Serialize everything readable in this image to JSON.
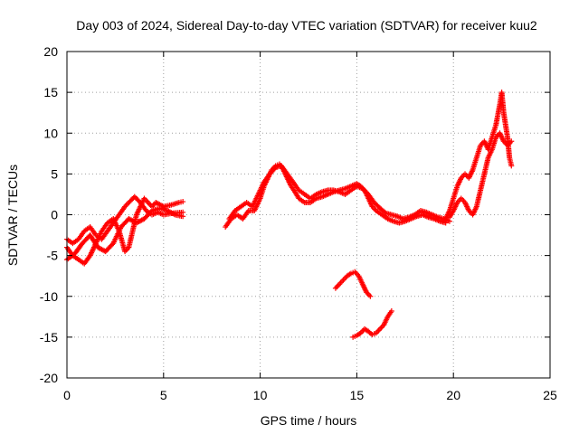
{
  "chart_data": {
    "type": "scatter",
    "title": "Day 003 of 2024, Sidereal Day-to-day VTEC variation (SDTVAR) for receiver kuu2",
    "xlabel": "GPS time / hours",
    "ylabel": "SDTVAR / TECUs",
    "xlim": [
      0,
      25
    ],
    "ylim": [
      -20,
      20
    ],
    "xticks": [
      0,
      5,
      10,
      15,
      20,
      25
    ],
    "yticks": [
      -20,
      -15,
      -10,
      -5,
      0,
      5,
      10,
      15,
      20
    ],
    "grid": true,
    "marker": "+",
    "color": "#ff0000",
    "series": [
      {
        "name": "track-a-early-morning",
        "points": [
          [
            0.0,
            -4.0
          ],
          [
            0.3,
            -5.0
          ],
          [
            0.6,
            -5.5
          ],
          [
            0.9,
            -6.0
          ],
          [
            1.2,
            -5.0
          ],
          [
            1.5,
            -3.5
          ],
          [
            1.8,
            -2.0
          ],
          [
            2.1,
            -1.0
          ],
          [
            2.4,
            -0.5
          ],
          [
            2.7,
            -2.0
          ],
          [
            3.0,
            -4.5
          ],
          [
            3.2,
            -4.0
          ],
          [
            3.4,
            -2.0
          ],
          [
            3.6,
            0.0
          ],
          [
            3.8,
            1.0
          ],
          [
            4.0,
            2.0
          ],
          [
            4.2,
            1.5
          ],
          [
            4.4,
            1.0
          ],
          [
            4.6,
            1.5
          ],
          [
            5.0,
            1.0
          ],
          [
            5.4,
            1.2
          ],
          [
            5.8,
            1.5
          ],
          [
            6.0,
            1.6
          ]
        ]
      },
      {
        "name": "track-b-early-morning",
        "points": [
          [
            0.0,
            -3.0
          ],
          [
            0.3,
            -3.5
          ],
          [
            0.6,
            -3.0
          ],
          [
            0.9,
            -2.0
          ],
          [
            1.2,
            -1.5
          ],
          [
            1.5,
            -2.5
          ],
          [
            1.8,
            -3.0
          ],
          [
            2.1,
            -2.0
          ],
          [
            2.4,
            -1.0
          ],
          [
            2.7,
            0.0
          ],
          [
            3.0,
            1.0
          ],
          [
            3.2,
            1.5
          ],
          [
            3.5,
            2.2
          ],
          [
            3.8,
            1.5
          ],
          [
            4.1,
            0.5
          ],
          [
            4.4,
            0.0
          ],
          [
            4.7,
            0.3
          ],
          [
            5.0,
            0.0
          ],
          [
            5.5,
            0.2
          ],
          [
            6.0,
            0.3
          ]
        ]
      },
      {
        "name": "track-c-early-morning",
        "points": [
          [
            0.0,
            -5.5
          ],
          [
            0.4,
            -4.8
          ],
          [
            0.8,
            -3.5
          ],
          [
            1.2,
            -2.5
          ],
          [
            1.6,
            -4.0
          ],
          [
            2.0,
            -4.5
          ],
          [
            2.4,
            -3.5
          ],
          [
            2.8,
            -1.5
          ],
          [
            3.2,
            -0.5
          ],
          [
            3.6,
            -1.0
          ],
          [
            4.0,
            -0.5
          ],
          [
            4.4,
            0.5
          ],
          [
            4.8,
            0.8
          ],
          [
            5.2,
            0.5
          ],
          [
            5.6,
            0.0
          ],
          [
            6.0,
            -0.2
          ]
        ]
      },
      {
        "name": "track-d-midday",
        "points": [
          [
            8.2,
            -1.5
          ],
          [
            8.5,
            -0.5
          ],
          [
            8.8,
            0.0
          ],
          [
            9.1,
            -0.5
          ],
          [
            9.4,
            0.5
          ],
          [
            9.7,
            0.5
          ],
          [
            10.0,
            2.0
          ],
          [
            10.2,
            3.5
          ],
          [
            10.4,
            4.5
          ],
          [
            10.6,
            5.5
          ],
          [
            10.8,
            6.0
          ],
          [
            11.0,
            6.2
          ],
          [
            11.2,
            5.5
          ],
          [
            11.4,
            4.5
          ],
          [
            11.6,
            3.5
          ],
          [
            11.8,
            2.8
          ],
          [
            12.0,
            2.0
          ],
          [
            12.3,
            1.5
          ],
          [
            12.6,
            1.5
          ],
          [
            12.9,
            2.0
          ],
          [
            13.2,
            2.2
          ],
          [
            13.5,
            2.5
          ],
          [
            13.8,
            2.8
          ],
          [
            14.1,
            3.0
          ],
          [
            14.4,
            3.2
          ],
          [
            14.7,
            3.5
          ],
          [
            15.0,
            3.8
          ],
          [
            15.2,
            3.5
          ],
          [
            15.4,
            3.0
          ],
          [
            15.6,
            2.0
          ],
          [
            15.8,
            1.0
          ],
          [
            16.0,
            0.5
          ],
          [
            16.3,
            0.0
          ],
          [
            16.6,
            -0.5
          ],
          [
            16.9,
            -0.8
          ],
          [
            17.2,
            -1.0
          ],
          [
            17.5,
            -0.8
          ],
          [
            17.8,
            -0.5
          ],
          [
            18.1,
            -0.2
          ],
          [
            18.4,
            0.0
          ],
          [
            18.7,
            -0.3
          ],
          [
            19.0,
            -0.5
          ],
          [
            19.3,
            -0.8
          ],
          [
            19.6,
            -1.0
          ]
        ]
      },
      {
        "name": "track-e-midday",
        "points": [
          [
            8.4,
            -0.5
          ],
          [
            8.7,
            0.5
          ],
          [
            9.0,
            1.0
          ],
          [
            9.3,
            1.5
          ],
          [
            9.6,
            1.0
          ],
          [
            9.9,
            2.5
          ],
          [
            10.2,
            4.0
          ],
          [
            10.5,
            5.0
          ],
          [
            10.8,
            5.8
          ],
          [
            11.1,
            6.0
          ],
          [
            11.4,
            5.0
          ],
          [
            11.7,
            4.0
          ],
          [
            12.0,
            3.0
          ],
          [
            12.3,
            2.5
          ],
          [
            12.6,
            2.0
          ],
          [
            12.9,
            2.5
          ],
          [
            13.2,
            2.8
          ],
          [
            13.5,
            3.0
          ],
          [
            13.8,
            3.0
          ],
          [
            14.1,
            2.8
          ],
          [
            14.4,
            2.5
          ],
          [
            14.7,
            3.0
          ],
          [
            15.0,
            3.5
          ],
          [
            15.3,
            3.2
          ],
          [
            15.6,
            2.5
          ],
          [
            15.9,
            1.5
          ],
          [
            16.2,
            0.8
          ],
          [
            16.5,
            0.2
          ],
          [
            16.8,
            0.0
          ],
          [
            17.1,
            -0.2
          ],
          [
            17.4,
            -0.5
          ],
          [
            17.7,
            -0.3
          ],
          [
            18.0,
            0.0
          ],
          [
            18.3,
            0.5
          ],
          [
            18.6,
            0.3
          ],
          [
            18.9,
            0.0
          ],
          [
            19.2,
            -0.3
          ],
          [
            19.5,
            -0.5
          ],
          [
            19.8,
            -0.8
          ]
        ]
      },
      {
        "name": "track-f-evening-rise",
        "points": [
          [
            19.6,
            -0.5
          ],
          [
            19.8,
            0.5
          ],
          [
            20.0,
            2.0
          ],
          [
            20.2,
            3.5
          ],
          [
            20.4,
            4.5
          ],
          [
            20.6,
            5.0
          ],
          [
            20.8,
            4.5
          ],
          [
            21.0,
            5.5
          ],
          [
            21.2,
            7.0
          ],
          [
            21.4,
            8.5
          ],
          [
            21.6,
            9.0
          ],
          [
            21.8,
            8.0
          ],
          [
            22.0,
            9.5
          ],
          [
            22.2,
            11.0
          ],
          [
            22.4,
            13.5
          ],
          [
            22.5,
            15.0
          ],
          [
            22.6,
            12.5
          ],
          [
            22.8,
            9.5
          ],
          [
            22.9,
            7.0
          ],
          [
            23.0,
            6.0
          ]
        ]
      },
      {
        "name": "track-g-evening-rise",
        "points": [
          [
            19.8,
            -0.3
          ],
          [
            20.0,
            0.5
          ],
          [
            20.2,
            1.5
          ],
          [
            20.4,
            2.0
          ],
          [
            20.6,
            1.5
          ],
          [
            20.8,
            0.5
          ],
          [
            21.0,
            0.0
          ],
          [
            21.2,
            1.0
          ],
          [
            21.4,
            3.0
          ],
          [
            21.6,
            5.0
          ],
          [
            21.8,
            7.0
          ],
          [
            22.0,
            8.0
          ],
          [
            22.2,
            9.5
          ],
          [
            22.4,
            10.0
          ],
          [
            22.6,
            9.0
          ],
          [
            22.8,
            8.5
          ],
          [
            23.0,
            9.0
          ]
        ]
      },
      {
        "name": "track-h-negative-arc",
        "points": [
          [
            13.9,
            -9.0
          ],
          [
            14.1,
            -8.5
          ],
          [
            14.3,
            -8.0
          ],
          [
            14.5,
            -7.5
          ],
          [
            14.7,
            -7.2
          ],
          [
            14.9,
            -7.0
          ],
          [
            15.1,
            -7.5
          ],
          [
            15.3,
            -8.5
          ],
          [
            15.5,
            -9.5
          ],
          [
            15.7,
            -10.0
          ]
        ]
      },
      {
        "name": "track-i-negative-arc",
        "points": [
          [
            14.8,
            -15.0
          ],
          [
            15.0,
            -14.8
          ],
          [
            15.2,
            -14.5
          ],
          [
            15.4,
            -14.0
          ],
          [
            15.6,
            -14.3
          ],
          [
            15.8,
            -14.7
          ],
          [
            16.0,
            -14.5
          ],
          [
            16.2,
            -14.0
          ],
          [
            16.4,
            -13.5
          ],
          [
            16.6,
            -12.5
          ],
          [
            16.8,
            -11.8
          ]
        ]
      }
    ]
  }
}
